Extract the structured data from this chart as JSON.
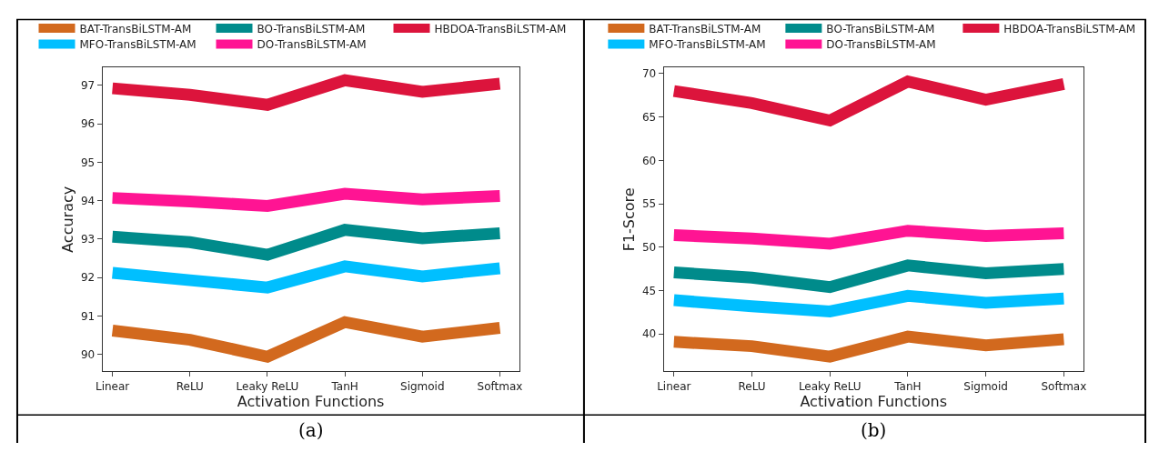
{
  "chart_data": [
    {
      "type": "line",
      "xlabel": "Activation Functions",
      "ylabel": "Accuracy",
      "categories": [
        "Linear",
        "ReLU",
        "Leaky ReLU",
        "TanH",
        "Sigmoid",
        "Softmax"
      ],
      "ylim": [
        89.56,
        97.46
      ],
      "yticks": [
        90,
        91,
        92,
        93,
        94,
        95,
        96,
        97
      ],
      "legend": "top",
      "marker": "none",
      "annotations": [
        "(a)"
      ],
      "series": [
        {
          "name": "BAT-TransBiLSTM-AM",
          "color": "#d2691e",
          "values": [
            90.62,
            90.38,
            89.94,
            90.84,
            90.46,
            90.69
          ]
        },
        {
          "name": "BO-TransBiLSTM-AM",
          "color": "#008b8b",
          "values": [
            93.06,
            92.92,
            92.59,
            93.24,
            93.02,
            93.15
          ]
        },
        {
          "name": "HBDOA-TransBiLSTM-AM",
          "color": "#dc143c",
          "values": [
            96.92,
            96.75,
            96.49,
            97.13,
            96.83,
            97.04
          ]
        },
        {
          "name": "MFO-TransBiLSTM-AM",
          "color": "#00bfff",
          "values": [
            92.12,
            91.93,
            91.74,
            92.29,
            92.03,
            92.24
          ]
        },
        {
          "name": "DO-TransBiLSTM-AM",
          "color": "#ff1493",
          "values": [
            94.07,
            93.98,
            93.86,
            94.18,
            94.03,
            94.12
          ]
        }
      ]
    },
    {
      "type": "line",
      "xlabel": "Activation Functions",
      "ylabel": "F1-Score",
      "categories": [
        "Linear",
        "ReLU",
        "Leaky ReLU",
        "TanH",
        "Sigmoid",
        "Softmax"
      ],
      "ylim": [
        35.7,
        70.7
      ],
      "yticks": [
        40,
        45,
        50,
        55,
        60,
        65,
        70
      ],
      "legend": "top",
      "marker": "none",
      "annotations": [
        "(b)"
      ],
      "series": [
        {
          "name": "BAT-TransBiLSTM-AM",
          "color": "#d2691e",
          "values": [
            39.1,
            38.6,
            37.4,
            39.7,
            38.7,
            39.4
          ]
        },
        {
          "name": "BO-TransBiLSTM-AM",
          "color": "#008b8b",
          "values": [
            47.1,
            46.5,
            45.4,
            47.9,
            47.0,
            47.5
          ]
        },
        {
          "name": "HBDOA-TransBiLSTM-AM",
          "color": "#dc143c",
          "values": [
            68.0,
            66.6,
            64.6,
            69.1,
            67.0,
            68.8
          ]
        },
        {
          "name": "MFO-TransBiLSTM-AM",
          "color": "#00bfff",
          "values": [
            43.9,
            43.2,
            42.6,
            44.4,
            43.6,
            44.1
          ]
        },
        {
          "name": "DO-TransBiLSTM-AM",
          "color": "#ff1493",
          "values": [
            51.4,
            51.0,
            50.4,
            51.9,
            51.3,
            51.6
          ]
        }
      ]
    }
  ]
}
